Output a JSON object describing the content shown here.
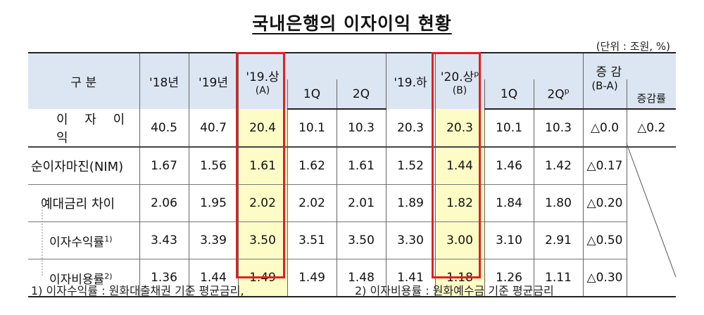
{
  "title": "국내은행의 이자이익 현황",
  "unit": "(단위 : 조원, %)",
  "headers": {
    "category": "구 분",
    "y18": "'18년",
    "y19": "'19년",
    "h19_1": "'19.상",
    "h19_1_sub": "(A)",
    "q1": "1Q",
    "q2": "2Q",
    "h19_2": "'19.하",
    "h20_1": "'20.상",
    "h20_1_sup": "p",
    "h20_1_sub": "(B)",
    "q1b": "1Q",
    "q2b": "2Q",
    "q2b_sup": "p",
    "change": "증 감",
    "change_sub": "(B-A)",
    "change_rate": "증감률"
  },
  "rows": [
    {
      "label": "이 자 이 익",
      "values": [
        "40.5",
        "40.7",
        "20.4",
        "10.1",
        "10.3",
        "20.3",
        "20.3",
        "10.1",
        "10.3",
        "△0.0",
        "△0.2"
      ]
    },
    {
      "label": "순이자마진(NIM)",
      "values": [
        "1.67",
        "1.56",
        "1.61",
        "1.62",
        "1.61",
        "1.52",
        "1.44",
        "1.46",
        "1.42",
        "△0.17"
      ]
    },
    {
      "label": "예대금리 차이",
      "values": [
        "2.06",
        "1.95",
        "2.02",
        "2.02",
        "2.01",
        "1.89",
        "1.82",
        "1.84",
        "1.80",
        "△0.20"
      ]
    },
    {
      "label": "이자수익률",
      "label_sup": "1)",
      "values": [
        "3.43",
        "3.39",
        "3.50",
        "3.51",
        "3.50",
        "3.30",
        "3.00",
        "3.10",
        "2.91",
        "△0.50"
      ]
    },
    {
      "label": "이자비용률",
      "label_sup": "2)",
      "values": [
        "1.36",
        "1.44",
        "1.49",
        "1.49",
        "1.48",
        "1.41",
        "1.18",
        "1.26",
        "1.11",
        "△0.30"
      ]
    }
  ],
  "notes": {
    "note1": "1) 이자수익률 : 원화대출채권 기준 평균금리,",
    "note2": "2) 이자비용률 : 원화예수금 기준 평균금리"
  },
  "colors": {
    "header_bg": "#dce6f2",
    "highlight_bg": "#fefcc6",
    "box_border": "#e02020"
  }
}
